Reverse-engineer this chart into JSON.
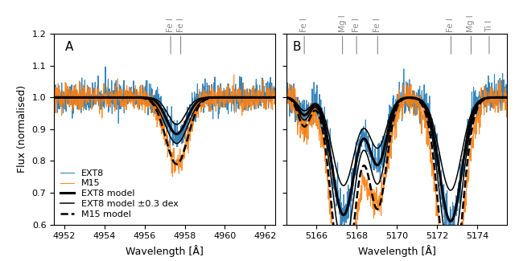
{
  "ylim": [
    0.6,
    1.2
  ],
  "yticks": [
    0.6,
    0.7,
    0.8,
    0.9,
    1.0,
    1.1,
    1.2
  ],
  "ylabel": "Flux (normalised)",
  "panel_A": {
    "label": "A",
    "xlim": [
      4951.5,
      4962.5
    ],
    "xlabel": "Wavelength [Å]",
    "xticks": [
      4952,
      4954,
      4956,
      4958,
      4960,
      4962
    ],
    "line_markers": [
      {
        "x": 4957.3,
        "label": "Fe I"
      },
      {
        "x": 4957.8,
        "label": "Fe I"
      }
    ]
  },
  "panel_B": {
    "label": "B",
    "xlim": [
      5164.5,
      5175.5
    ],
    "xlabel": "Wavelength [Å]",
    "xticks": [
      5166,
      5168,
      5170,
      5172,
      5174
    ],
    "line_markers": [
      {
        "x": 5165.4,
        "label": "Fe I"
      },
      {
        "x": 5167.3,
        "label": "Mg I"
      },
      {
        "x": 5168.0,
        "label": "Fe I"
      },
      {
        "x": 5169.05,
        "label": "Fe I"
      },
      {
        "x": 5172.7,
        "label": "Fe I"
      },
      {
        "x": 5173.7,
        "label": "Mg I"
      },
      {
        "x": 5174.6,
        "label": "Ti I"
      }
    ]
  },
  "legend_labels": [
    "EXT8",
    "M15",
    "EXT8 model",
    "EXT8 model ±0.3 dex",
    "M15 model"
  ],
  "color_ext8": "#1f77b4",
  "color_m15": "#ff7f0e",
  "color_model": "black",
  "line_marker_color": "#888888",
  "panel_label_fontsize": 11,
  "axis_label_fontsize": 9,
  "tick_label_fontsize": 8,
  "legend_fontsize": 8,
  "line_annotation_fontsize": 7.5
}
